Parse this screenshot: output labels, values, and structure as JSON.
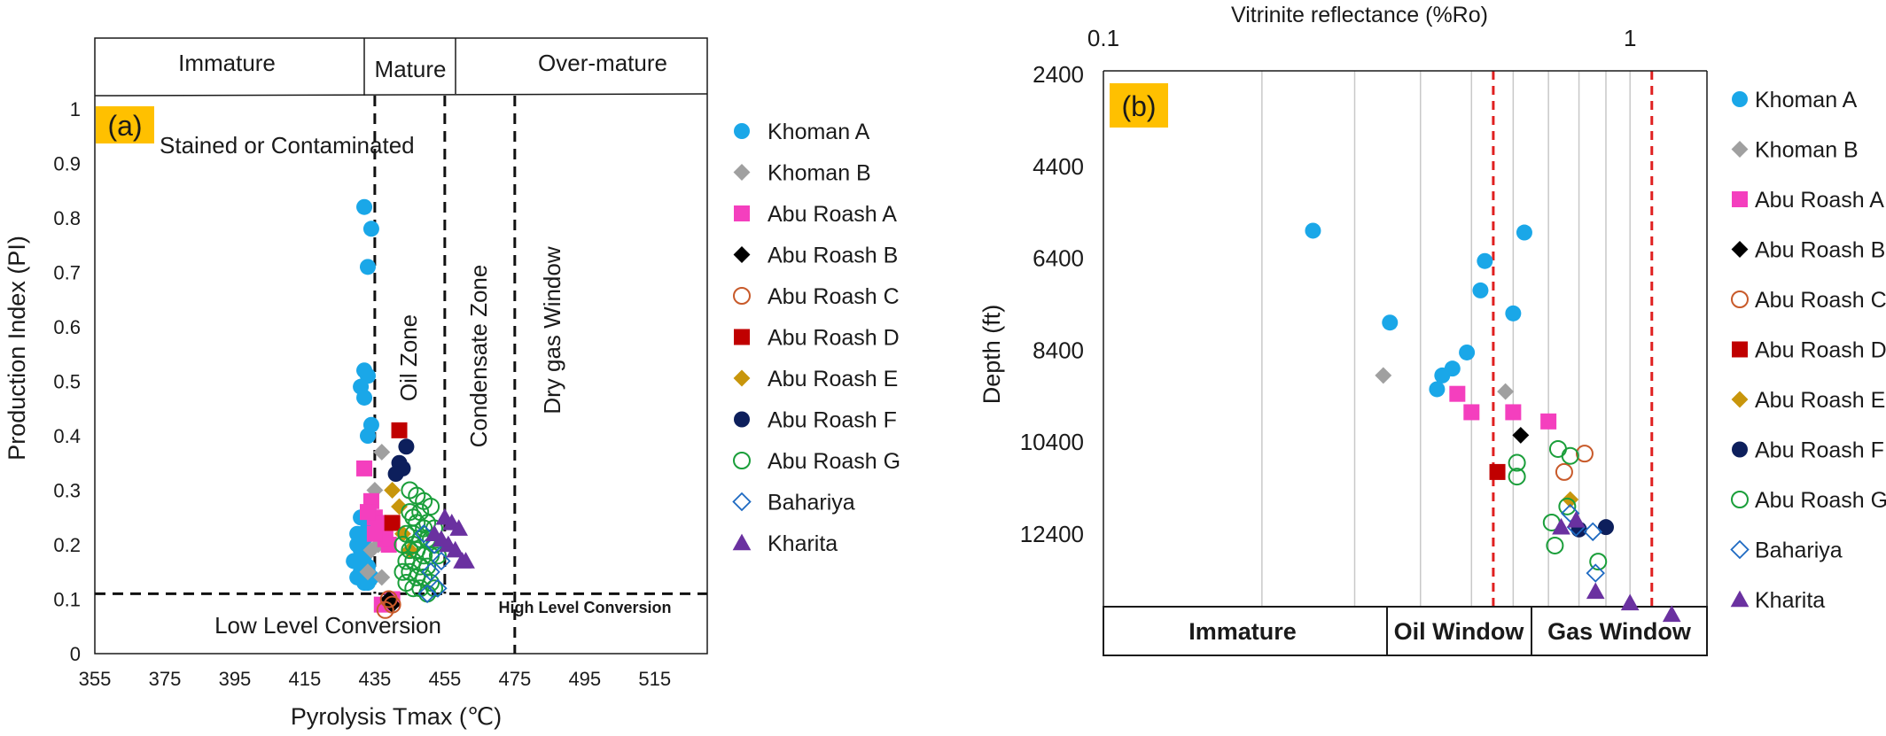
{
  "chart_data": [
    {
      "type": "scatter",
      "label": "(a)",
      "xlabel": "Pyrolysis Tmax (℃)",
      "ylabel": "Production Index (PI)",
      "xlim": [
        355,
        530
      ],
      "ylim": [
        0,
        1
      ],
      "xticks": [
        "355",
        "375",
        "395",
        "415",
        "435",
        "455",
        "475",
        "495",
        "515"
      ],
      "yticks": [
        "0",
        "0.1",
        "0.2",
        "0.3",
        "0.4",
        "0.5",
        "0.6",
        "0.7",
        "0.8",
        "0.9",
        "1"
      ],
      "maturity_bands": [
        "Immature",
        "Mature",
        "Over-mature"
      ],
      "zones": [
        "Stained or Contaminated",
        "Oil Zone",
        "Condensate Zone",
        "Dry gas Window",
        "Low Level Conversion",
        "High Level Conversion"
      ],
      "legend_placement": "right",
      "series": [
        {
          "name": "Khoman A",
          "color": "#1aa7e8",
          "marker": "circle-filled",
          "x": [
            432,
            434,
            433,
            432,
            433,
            431,
            432,
            433,
            434,
            430,
            429,
            430,
            431,
            432,
            433,
            431,
            432,
            433,
            430,
            431,
            432,
            433,
            434,
            432,
            433,
            431
          ],
          "y": [
            0.82,
            0.78,
            0.71,
            0.52,
            0.51,
            0.49,
            0.47,
            0.4,
            0.42,
            0.2,
            0.17,
            0.14,
            0.15,
            0.18,
            0.23,
            0.25,
            0.13,
            0.16,
            0.22,
            0.19,
            0.21,
            0.13,
            0.14,
            0.16,
            0.15,
            0.17
          ]
        },
        {
          "name": "Khoman B",
          "color": "#a0a0a0",
          "marker": "diamond-filled",
          "x": [
            437,
            435,
            436,
            434,
            433,
            437
          ],
          "y": [
            0.37,
            0.3,
            0.2,
            0.19,
            0.15,
            0.14
          ]
        },
        {
          "name": "Abu Roash A",
          "color": "#f43fbe",
          "marker": "square-filled",
          "x": [
            432,
            434,
            435,
            437,
            438,
            439,
            436,
            438,
            435,
            440,
            433,
            437
          ],
          "y": [
            0.34,
            0.28,
            0.25,
            0.23,
            0.22,
            0.2,
            0.24,
            0.21,
            0.22,
            0.1,
            0.26,
            0.09
          ]
        },
        {
          "name": "Abu Roash B",
          "color": "#000000",
          "marker": "diamond-filled",
          "x": [
            439,
            440
          ],
          "y": [
            0.1,
            0.09
          ]
        },
        {
          "name": "Abu Roash C",
          "color": "#c85a2a",
          "marker": "circle-open",
          "x": [
            438,
            439,
            440
          ],
          "y": [
            0.08,
            0.1,
            0.09
          ]
        },
        {
          "name": "Abu Roash D",
          "color": "#c00000",
          "marker": "square-filled",
          "x": [
            442,
            440
          ],
          "y": [
            0.41,
            0.24
          ]
        },
        {
          "name": "Abu Roash E",
          "color": "#c8960c",
          "marker": "diamond-filled",
          "x": [
            440,
            442,
            443,
            445
          ],
          "y": [
            0.3,
            0.27,
            0.22,
            0.19
          ]
        },
        {
          "name": "Abu Roash F",
          "color": "#0d1f5c",
          "marker": "circle-filled",
          "x": [
            444,
            442,
            443,
            441
          ],
          "y": [
            0.38,
            0.35,
            0.34,
            0.33
          ]
        },
        {
          "name": "Abu Roash G",
          "color": "#1a9e3a",
          "marker": "circle-open",
          "x": [
            445,
            447,
            449,
            451,
            448,
            446,
            450,
            452,
            444,
            446,
            448,
            450,
            452,
            445,
            447,
            449,
            451,
            453,
            444,
            446,
            448,
            450,
            443,
            445,
            447,
            449,
            451,
            444,
            446,
            448,
            450,
            452,
            445,
            447,
            449,
            451,
            443,
            446
          ],
          "y": [
            0.3,
            0.29,
            0.28,
            0.27,
            0.26,
            0.25,
            0.24,
            0.23,
            0.22,
            0.22,
            0.21,
            0.21,
            0.2,
            0.19,
            0.19,
            0.18,
            0.18,
            0.18,
            0.17,
            0.17,
            0.16,
            0.16,
            0.15,
            0.15,
            0.14,
            0.14,
            0.13,
            0.13,
            0.12,
            0.12,
            0.11,
            0.12,
            0.26,
            0.24,
            0.23,
            0.21,
            0.2,
            0.2
          ]
        },
        {
          "name": "Bahariya",
          "color": "#1e6ac2",
          "marker": "diamond-open",
          "x": [
            449,
            452,
            454,
            451,
            453,
            450
          ],
          "y": [
            0.22,
            0.2,
            0.17,
            0.15,
            0.12,
            0.11
          ]
        },
        {
          "name": "Kharita",
          "color": "#6a31a0",
          "marker": "triangle-filled",
          "x": [
            455,
            457,
            459,
            456,
            458,
            461,
            460,
            452,
            454
          ],
          "y": [
            0.25,
            0.24,
            0.23,
            0.2,
            0.19,
            0.17,
            0.17,
            0.22,
            0.21
          ]
        }
      ]
    },
    {
      "type": "scatter",
      "label": "(b)",
      "xlabel": "Vitrinite reflectance (%Ro)",
      "ylabel": "Depth (ft)",
      "xscale": "log",
      "xlim": [
        0.1,
        1.4
      ],
      "ylim": [
        14000,
        2400
      ],
      "xticks": [
        "0.1",
        "1"
      ],
      "yticks": [
        "2400",
        "4400",
        "6400",
        "8400",
        "10400",
        "12400"
      ],
      "windows": [
        "Immature",
        "Oil Window",
        "Gas Window"
      ],
      "window_boundaries_ro": [
        0.55,
        1.1
      ],
      "legend_placement": "right",
      "series": [
        {
          "name": "Khoman A",
          "color": "#1aa7e8",
          "marker": "circle-filled",
          "x": [
            0.25,
            0.53,
            0.63,
            0.52,
            0.35,
            0.49,
            0.46,
            0.44,
            0.6,
            0.43
          ],
          "y": [
            5800,
            6460,
            5840,
            7100,
            7800,
            8450,
            8800,
            8950,
            7600,
            9250
          ]
        },
        {
          "name": "Khoman B",
          "color": "#a0a0a0",
          "marker": "diamond-filled",
          "x": [
            0.34,
            0.58
          ],
          "y": [
            8950,
            9300
          ]
        },
        {
          "name": "Abu Roash A",
          "color": "#f43fbe",
          "marker": "square-filled",
          "x": [
            0.47,
            0.5,
            0.6,
            0.7
          ],
          "y": [
            9350,
            9750,
            9750,
            9950
          ]
        },
        {
          "name": "Abu Roash B",
          "color": "#000000",
          "marker": "diamond-filled",
          "x": [
            0.62
          ],
          "y": [
            10250
          ]
        },
        {
          "name": "Abu Roash C",
          "color": "#c85a2a",
          "marker": "circle-open",
          "x": [
            0.75,
            0.82
          ],
          "y": [
            11050,
            10650
          ]
        },
        {
          "name": "Abu Roash D",
          "color": "#c00000",
          "marker": "square-filled",
          "x": [
            0.56
          ],
          "y": [
            11050
          ]
        },
        {
          "name": "Abu Roash E",
          "color": "#c8960c",
          "marker": "diamond-filled",
          "x": [
            0.77
          ],
          "y": [
            11650
          ]
        },
        {
          "name": "Abu Roash F",
          "color": "#0d1f5c",
          "marker": "circle-filled",
          "x": [
            0.8,
            0.9
          ],
          "y": [
            12300,
            12250
          ]
        },
        {
          "name": "Abu Roash G",
          "color": "#1a9e3a",
          "marker": "circle-open",
          "x": [
            0.73,
            0.77,
            0.61,
            0.61,
            0.76,
            0.71,
            0.72,
            0.87
          ],
          "y": [
            10550,
            10700,
            10850,
            11150,
            11800,
            12150,
            12650,
            13000
          ]
        },
        {
          "name": "Bahariya",
          "color": "#1e6ac2",
          "marker": "diamond-open",
          "x": [
            0.77,
            0.79,
            0.85,
            0.86
          ],
          "y": [
            11950,
            12250,
            12350,
            13250
          ]
        },
        {
          "name": "Kharita",
          "color": "#6a31a0",
          "marker": "triangle-filled",
          "x": [
            0.74,
            0.79,
            0.86,
            1.0,
            1.2
          ],
          "y": [
            12250,
            12100,
            13650,
            13900,
            14150
          ]
        }
      ]
    }
  ]
}
